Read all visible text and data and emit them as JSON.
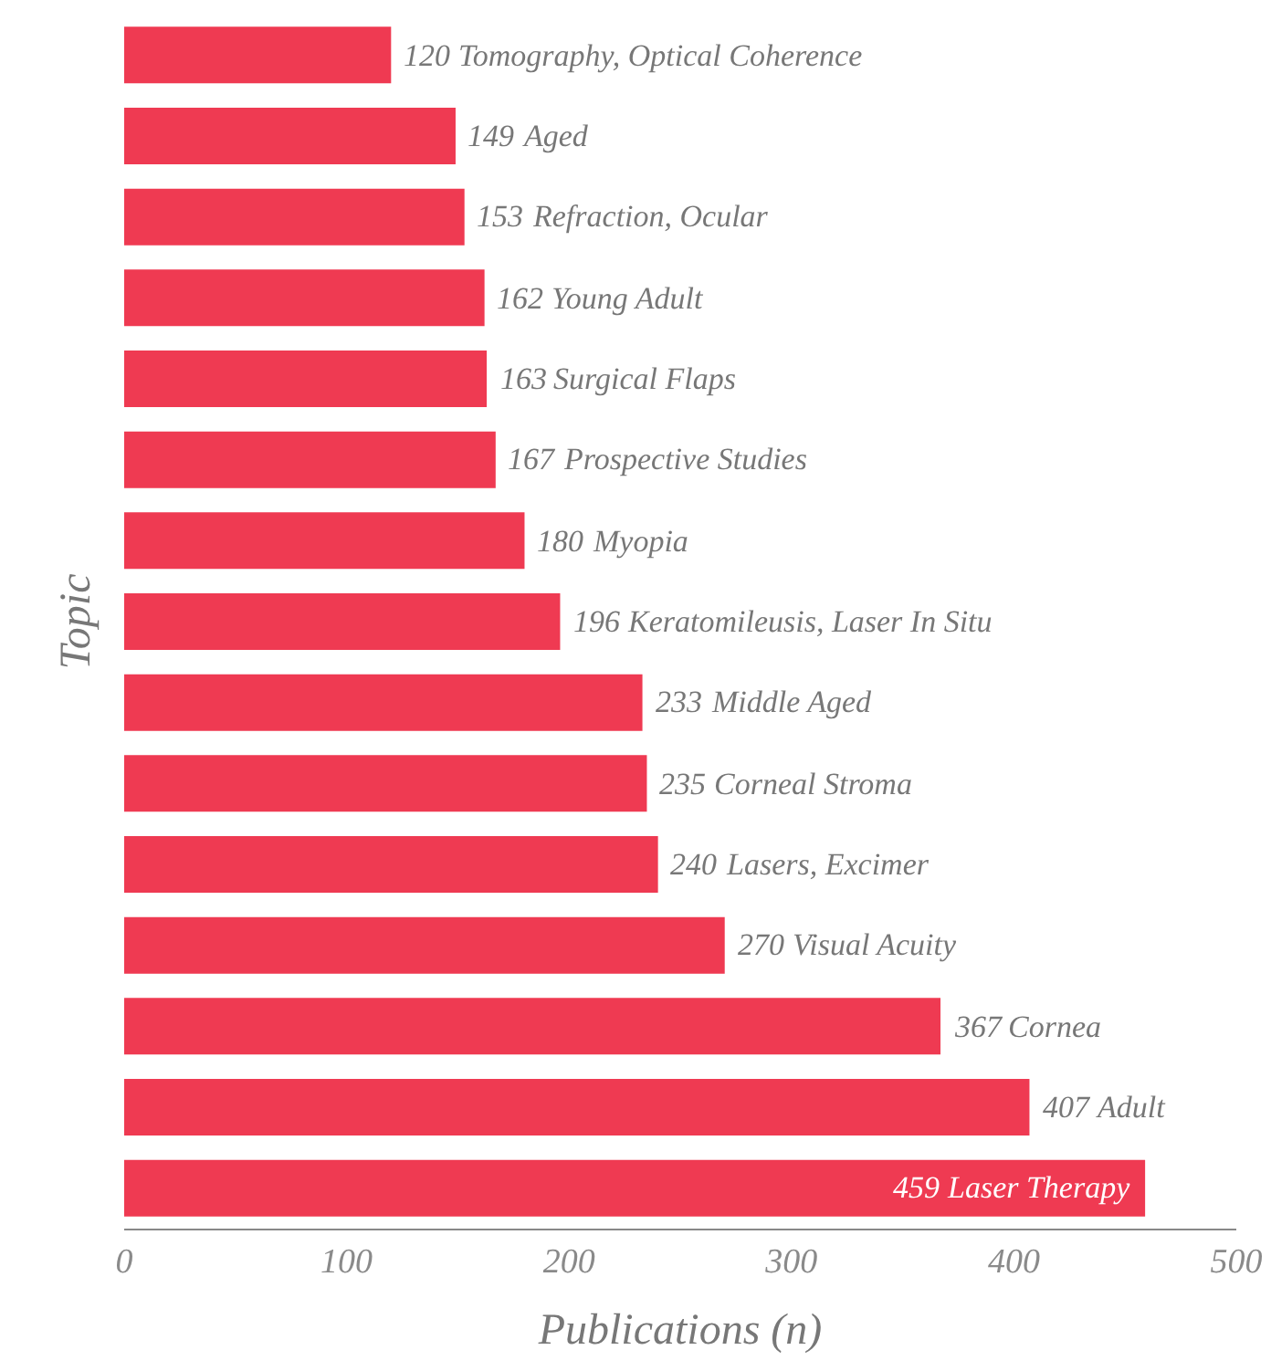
{
  "chart_data": {
    "type": "bar",
    "orientation": "horizontal",
    "xlabel": "Publications (n)",
    "ylabel": "Topic",
    "categories": [
      "Tomography, Optical Coherence",
      "Aged",
      "Refraction, Ocular",
      "Young Adult",
      "Surgical Flaps",
      "Prospective Studies",
      "Myopia",
      "Keratomileusis, Laser In Situ",
      "Middle Aged",
      "Corneal Stroma",
      "Lasers, Excimer",
      "Visual Acuity",
      "Cornea",
      "Adult",
      "Laser Therapy"
    ],
    "values": [
      120,
      149,
      153,
      162,
      163,
      167,
      180,
      196,
      233,
      235,
      240,
      270,
      367,
      407,
      459
    ],
    "data_labels": true,
    "color": "#ef3a52",
    "xlim": [
      0,
      500
    ],
    "xticks": [
      0,
      100,
      200,
      300,
      400,
      500
    ],
    "tick_labels": "x",
    "grid": false,
    "legend": false
  }
}
